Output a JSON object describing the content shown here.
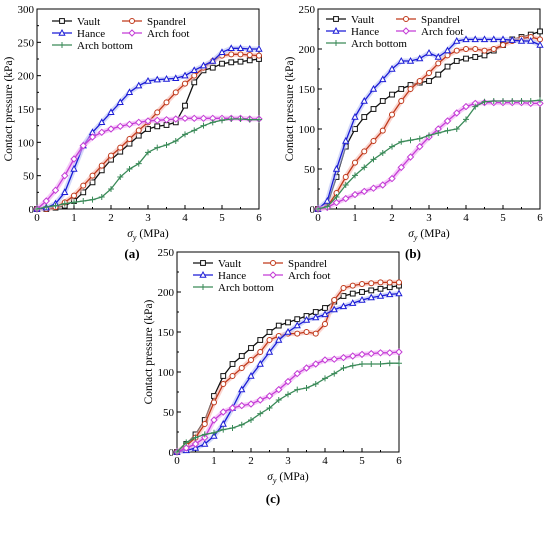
{
  "figure": {
    "colors": {
      "Vault": "#111111",
      "Spandrel": "#c0391b",
      "Hance": "#1b1bd6",
      "Arch foot": "#c43cd6",
      "Arch bottom": "#3a8a58"
    },
    "glow": {
      "Spandrel": "#f6b9b0",
      "Arch foot": "#f0a7f3",
      "Hance": "#b7c0f5"
    },
    "legend_order": [
      "Vault",
      "Spandrel",
      "Hance",
      "Arch foot",
      "Arch bottom"
    ]
  },
  "chart_data": [
    {
      "panel": "(a)",
      "type": "line",
      "xlabel_main": "σ",
      "xlabel_sub": "y",
      "xlabel_unit": "(MPa)",
      "ylabel": "Contact pressure (kPa)",
      "xlim": [
        0,
        6
      ],
      "ylim": [
        0,
        300
      ],
      "xticks": [
        0,
        1,
        2,
        3,
        4,
        5,
        6
      ],
      "yticks": [
        0,
        50,
        100,
        150,
        200,
        250,
        300
      ],
      "legend_position": "top-left",
      "series": [
        {
          "name": "Vault",
          "x": [
            0,
            0.25,
            0.5,
            0.75,
            1,
            1.25,
            1.5,
            1.75,
            2,
            2.25,
            2.5,
            2.75,
            3,
            3.25,
            3.5,
            3.75,
            4,
            4.25,
            4.5,
            4.75,
            5,
            5.25,
            5.5,
            5.75,
            6
          ],
          "y": [
            0,
            0,
            2,
            5,
            12,
            25,
            40,
            58,
            74,
            86,
            98,
            110,
            120,
            124,
            126,
            130,
            155,
            190,
            208,
            212,
            218,
            220,
            221,
            223,
            225
          ]
        },
        {
          "name": "Spandrel",
          "x": [
            0,
            0.25,
            0.5,
            0.75,
            1,
            1.25,
            1.5,
            1.75,
            2,
            2.25,
            2.5,
            2.75,
            3,
            3.25,
            3.5,
            3.75,
            4,
            4.25,
            4.5,
            4.75,
            5,
            5.25,
            5.5,
            5.75,
            6
          ],
          "y": [
            0,
            0,
            3,
            10,
            20,
            35,
            50,
            65,
            80,
            92,
            105,
            118,
            130,
            145,
            160,
            175,
            188,
            200,
            212,
            222,
            230,
            232,
            232,
            231,
            230
          ]
        },
        {
          "name": "Hance",
          "x": [
            0,
            0.25,
            0.5,
            0.75,
            1,
            1.25,
            1.5,
            1.75,
            2,
            2.25,
            2.5,
            2.75,
            3,
            3.25,
            3.5,
            3.75,
            4,
            4.25,
            4.5,
            4.75,
            5,
            5.25,
            5.5,
            5.75,
            6
          ],
          "y": [
            0,
            2,
            8,
            25,
            60,
            95,
            115,
            130,
            145,
            160,
            175,
            185,
            192,
            194,
            195,
            196,
            200,
            208,
            215,
            222,
            235,
            241,
            241,
            240,
            240
          ]
        },
        {
          "name": "Arch foot",
          "x": [
            0,
            0.25,
            0.5,
            0.75,
            1,
            1.25,
            1.5,
            1.75,
            2,
            2.25,
            2.5,
            2.75,
            3,
            3.25,
            3.5,
            3.75,
            4,
            4.25,
            4.5,
            4.75,
            5,
            5.25,
            5.5,
            5.75,
            6
          ],
          "y": [
            0,
            12,
            28,
            50,
            75,
            95,
            108,
            115,
            120,
            124,
            127,
            130,
            132,
            133,
            134,
            135,
            136,
            136,
            136,
            136,
            136,
            136,
            136,
            135,
            135
          ]
        },
        {
          "name": "Arch bottom",
          "x": [
            0,
            0.25,
            0.5,
            0.75,
            1,
            1.25,
            1.5,
            1.75,
            2,
            2.25,
            2.5,
            2.75,
            3,
            3.25,
            3.5,
            3.75,
            4,
            4.25,
            4.5,
            4.75,
            5,
            5.25,
            5.5,
            5.75,
            6
          ],
          "y": [
            0,
            3,
            5,
            8,
            10,
            12,
            14,
            18,
            30,
            48,
            60,
            68,
            85,
            92,
            96,
            102,
            112,
            118,
            125,
            130,
            133,
            135,
            135,
            134,
            134
          ]
        }
      ]
    },
    {
      "panel": "(b)",
      "type": "line",
      "xlabel_main": "σ",
      "xlabel_sub": "y",
      "xlabel_unit": "(MPa)",
      "ylabel": "Contact pressure (kPa)",
      "xlim": [
        0,
        6
      ],
      "ylim": [
        0,
        250
      ],
      "xticks": [
        0,
        1,
        2,
        3,
        4,
        5,
        6
      ],
      "yticks": [
        0,
        50,
        100,
        150,
        200,
        250
      ],
      "legend_position": "top-left",
      "series": [
        {
          "name": "Vault",
          "x": [
            0,
            0.25,
            0.5,
            0.75,
            1,
            1.25,
            1.5,
            1.75,
            2,
            2.25,
            2.5,
            2.75,
            3,
            3.25,
            3.5,
            3.75,
            4,
            4.25,
            4.5,
            4.75,
            5,
            5.25,
            5.5,
            5.75,
            6
          ],
          "y": [
            0,
            5,
            40,
            78,
            100,
            115,
            125,
            135,
            143,
            150,
            155,
            158,
            160,
            168,
            178,
            185,
            188,
            190,
            192,
            198,
            205,
            212,
            215,
            218,
            222
          ]
        },
        {
          "name": "Spandrel",
          "x": [
            0,
            0.25,
            0.5,
            0.75,
            1,
            1.25,
            1.5,
            1.75,
            2,
            2.25,
            2.5,
            2.75,
            3,
            3.25,
            3.5,
            3.75,
            4,
            4.25,
            4.5,
            4.75,
            5,
            5.25,
            5.5,
            5.75,
            6
          ],
          "y": [
            0,
            3,
            20,
            40,
            58,
            72,
            85,
            98,
            118,
            135,
            150,
            160,
            170,
            182,
            192,
            198,
            200,
            200,
            198,
            200,
            205,
            210,
            213,
            215,
            212
          ]
        },
        {
          "name": "Hance",
          "x": [
            0,
            0.25,
            0.5,
            0.75,
            1,
            1.25,
            1.5,
            1.75,
            2,
            2.25,
            2.5,
            2.75,
            3,
            3.25,
            3.5,
            3.75,
            4,
            4.25,
            4.5,
            4.75,
            5,
            5.25,
            5.5,
            5.75,
            6
          ],
          "y": [
            0,
            10,
            50,
            85,
            115,
            135,
            150,
            162,
            175,
            185,
            185,
            188,
            195,
            190,
            198,
            210,
            212,
            212,
            212,
            212,
            212,
            211,
            210,
            210,
            205
          ]
        },
        {
          "name": "Arch foot",
          "x": [
            0,
            0.25,
            0.5,
            0.75,
            1,
            1.25,
            1.5,
            1.75,
            2,
            2.25,
            2.5,
            2.75,
            3,
            3.25,
            3.5,
            3.75,
            4,
            4.25,
            4.5,
            4.75,
            5,
            5.25,
            5.5,
            5.75,
            6
          ],
          "y": [
            0,
            2,
            8,
            13,
            18,
            22,
            26,
            30,
            38,
            52,
            65,
            78,
            90,
            100,
            110,
            120,
            128,
            132,
            133,
            133,
            133,
            133,
            133,
            132,
            132
          ]
        },
        {
          "name": "Arch bottom",
          "x": [
            0,
            0.25,
            0.5,
            0.75,
            1,
            1.25,
            1.5,
            1.75,
            2,
            2.25,
            2.5,
            2.75,
            3,
            3.25,
            3.5,
            3.75,
            4,
            4.25,
            4.5,
            4.75,
            5,
            5.25,
            5.5,
            5.75,
            6
          ],
          "y": [
            0,
            3,
            15,
            30,
            42,
            52,
            62,
            70,
            78,
            84,
            86,
            88,
            92,
            95,
            98,
            100,
            112,
            128,
            134,
            135,
            135,
            135,
            135,
            135,
            136
          ]
        }
      ]
    },
    {
      "panel": "(c)",
      "type": "line",
      "xlabel_main": "σ",
      "xlabel_sub": "y",
      "xlabel_unit": "(MPa)",
      "ylabel": "Contact pressure (kPa)",
      "xlim": [
        0,
        6
      ],
      "ylim": [
        0,
        250
      ],
      "xticks": [
        0,
        1,
        2,
        3,
        4,
        5,
        6
      ],
      "yticks": [
        0,
        50,
        100,
        150,
        200,
        250
      ],
      "legend_position": "top-left",
      "series": [
        {
          "name": "Vault",
          "x": [
            0,
            0.25,
            0.5,
            0.75,
            1,
            1.25,
            1.5,
            1.75,
            2,
            2.25,
            2.5,
            2.75,
            3,
            3.25,
            3.5,
            3.75,
            4,
            4.25,
            4.5,
            4.75,
            5,
            5.25,
            5.5,
            5.75,
            6
          ],
          "y": [
            0,
            10,
            22,
            40,
            70,
            95,
            110,
            120,
            130,
            140,
            150,
            158,
            162,
            166,
            170,
            175,
            180,
            188,
            195,
            198,
            200,
            202,
            204,
            206,
            208
          ]
        },
        {
          "name": "Spandrel",
          "x": [
            0,
            0.25,
            0.5,
            0.75,
            1,
            1.25,
            1.5,
            1.75,
            2,
            2.25,
            2.5,
            2.75,
            3,
            3.25,
            3.5,
            3.75,
            4,
            4.25,
            4.5,
            4.75,
            5,
            5.25,
            5.5,
            5.75,
            6
          ],
          "y": [
            0,
            8,
            18,
            35,
            62,
            85,
            95,
            105,
            115,
            125,
            140,
            145,
            148,
            148,
            150,
            148,
            160,
            190,
            205,
            208,
            210,
            211,
            212,
            212,
            212
          ]
        },
        {
          "name": "Hance",
          "x": [
            0,
            0.25,
            0.5,
            0.75,
            1,
            1.25,
            1.5,
            1.75,
            2,
            2.25,
            2.5,
            2.75,
            3,
            3.25,
            3.5,
            3.75,
            4,
            4.25,
            4.5,
            4.75,
            5,
            5.25,
            5.5,
            5.75,
            6
          ],
          "y": [
            0,
            2,
            5,
            10,
            20,
            35,
            55,
            78,
            95,
            110,
            125,
            140,
            150,
            158,
            165,
            168,
            172,
            178,
            182,
            186,
            190,
            193,
            195,
            197,
            198
          ]
        },
        {
          "name": "Arch foot",
          "x": [
            0,
            0.25,
            0.5,
            0.75,
            1,
            1.25,
            1.5,
            1.75,
            2,
            2.25,
            2.5,
            2.75,
            3,
            3.25,
            3.5,
            3.75,
            4,
            4.25,
            4.5,
            4.75,
            5,
            5.25,
            5.5,
            5.75,
            6
          ],
          "y": [
            0,
            5,
            10,
            18,
            40,
            50,
            55,
            58,
            60,
            65,
            70,
            78,
            88,
            98,
            105,
            110,
            115,
            116,
            118,
            120,
            122,
            123,
            124,
            124,
            125
          ]
        },
        {
          "name": "Arch bottom",
          "x": [
            0,
            0.25,
            0.5,
            0.75,
            1,
            1.25,
            1.5,
            1.75,
            2,
            2.25,
            2.5,
            2.75,
            3,
            3.25,
            3.5,
            3.75,
            4,
            4.25,
            4.5,
            4.75,
            5,
            5.25,
            5.5,
            5.75,
            6
          ],
          "y": [
            0,
            12,
            18,
            22,
            24,
            28,
            30,
            34,
            40,
            48,
            55,
            65,
            72,
            78,
            80,
            85,
            92,
            98,
            105,
            108,
            110,
            110,
            110,
            111,
            111
          ]
        }
      ]
    }
  ]
}
